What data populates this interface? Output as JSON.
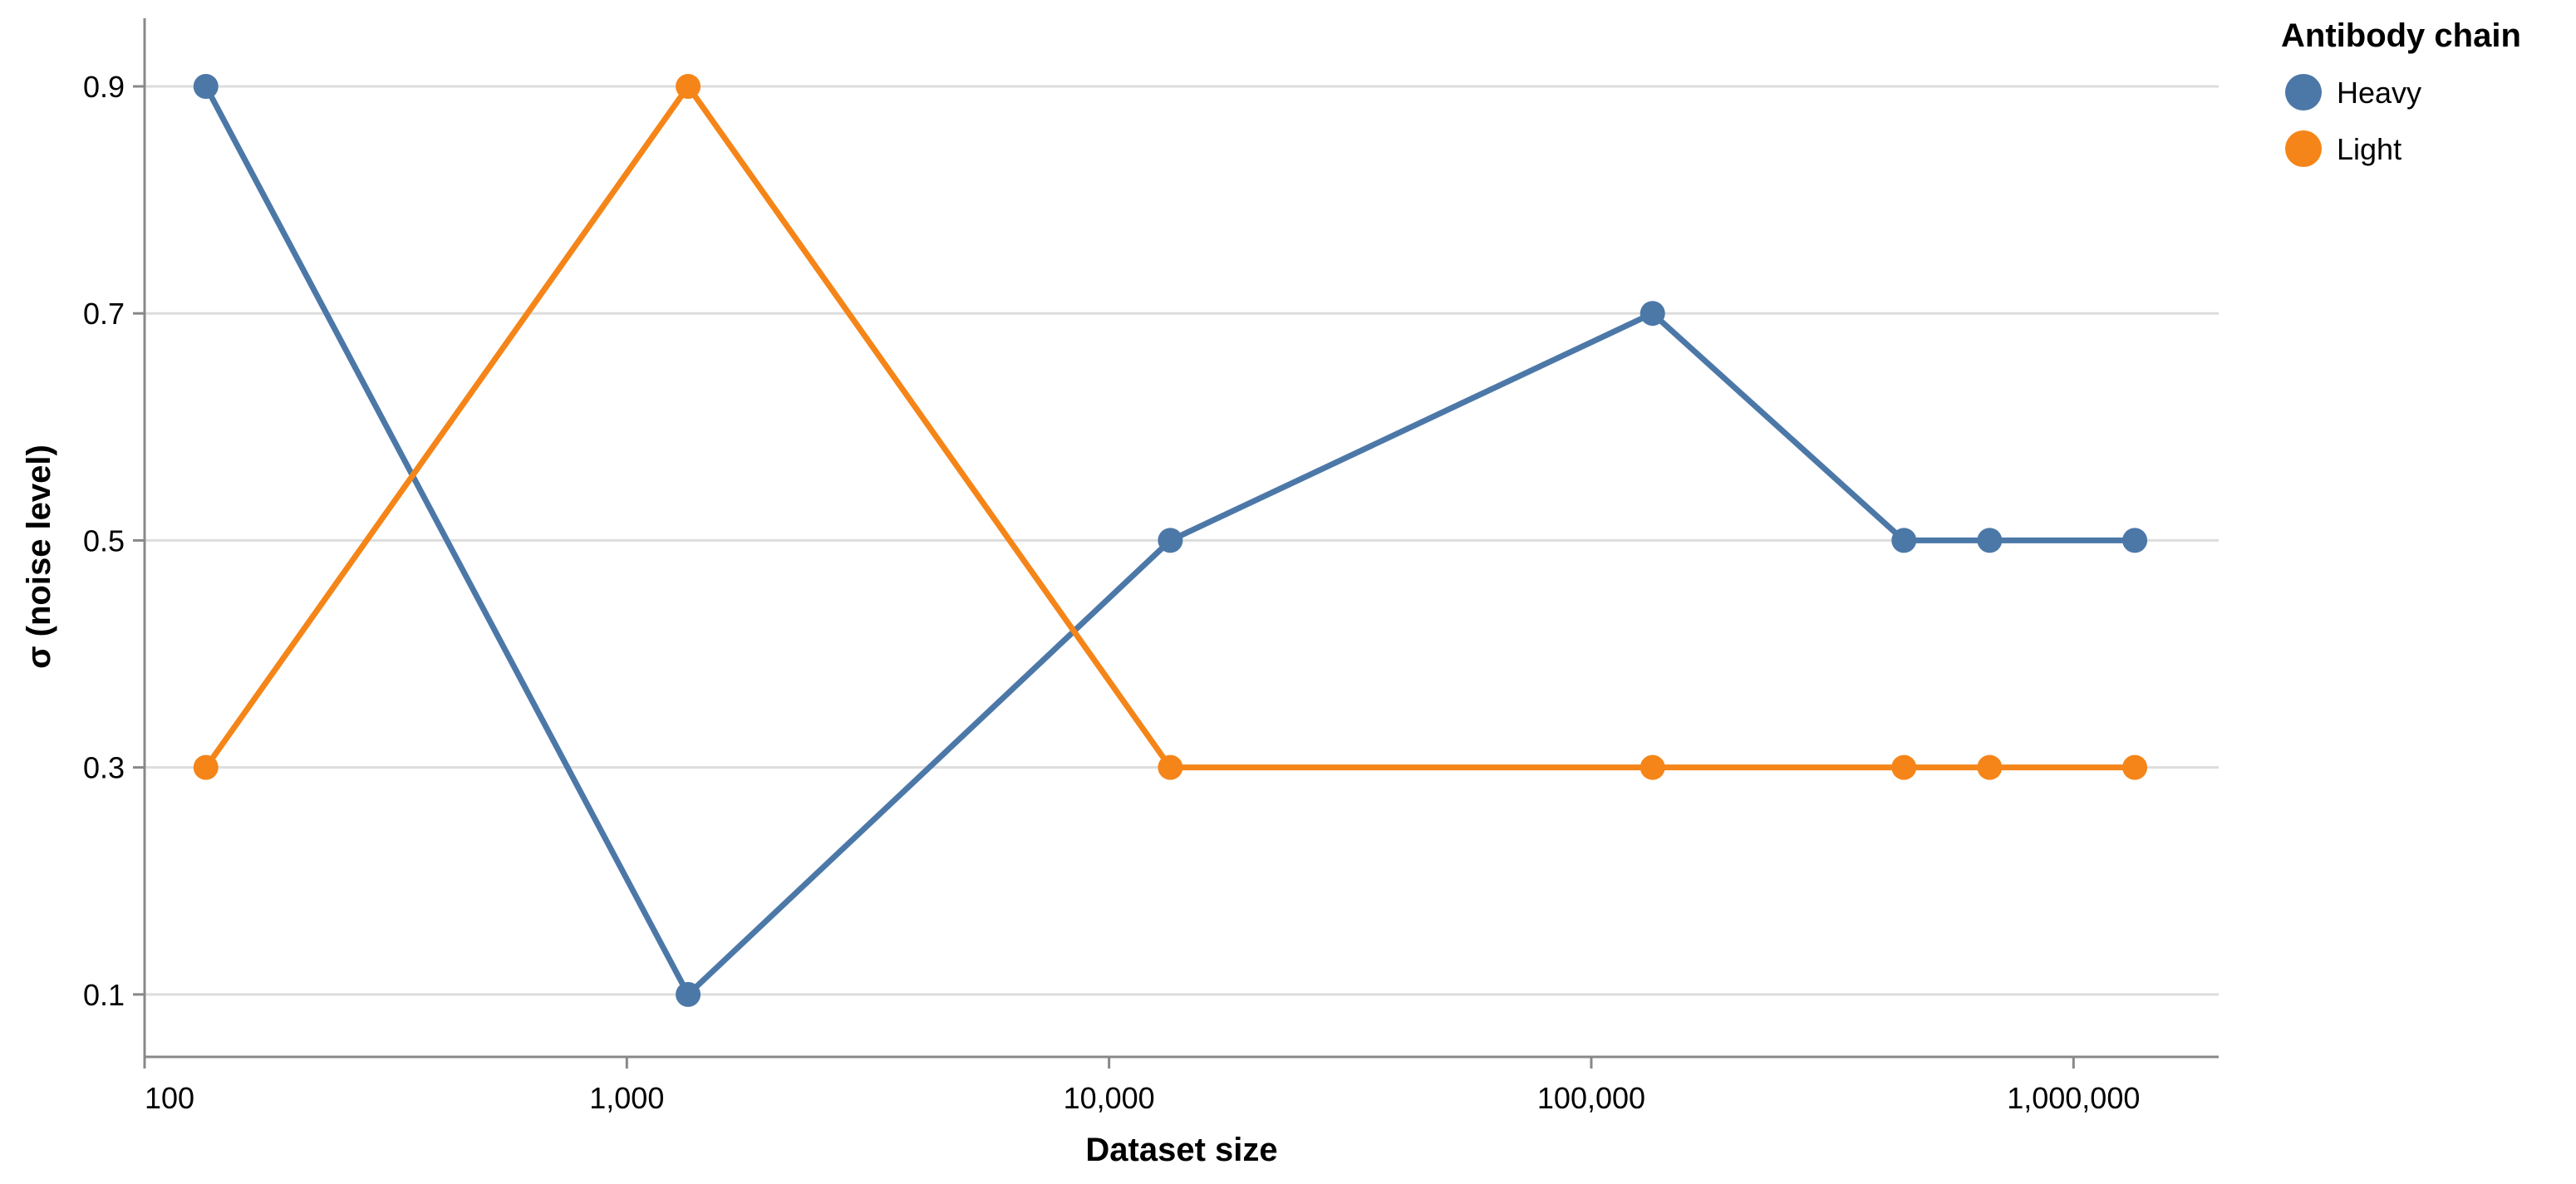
{
  "chart_data": {
    "type": "line",
    "title": "",
    "xlabel": "Dataset size",
    "ylabel": "σ (noise level)",
    "x_scale": "log",
    "xlim": [
      100,
      2000000
    ],
    "ylim": [
      0.045,
      0.96
    ],
    "x_ticks": [
      {
        "value": 100,
        "label": "100"
      },
      {
        "value": 1000,
        "label": "1,000"
      },
      {
        "value": 10000,
        "label": "10,000"
      },
      {
        "value": 100000,
        "label": "100,000"
      },
      {
        "value": 1000000,
        "label": "1,000,000"
      }
    ],
    "y_ticks": [
      {
        "value": 0.1,
        "label": "0.1"
      },
      {
        "value": 0.3,
        "label": "0.3"
      },
      {
        "value": 0.5,
        "label": "0.5"
      },
      {
        "value": 0.7,
        "label": "0.7"
      },
      {
        "value": 0.9,
        "label": "0.9"
      }
    ],
    "grid": "horizontal",
    "legend": {
      "title": "Antibody chain",
      "position": "top-right"
    },
    "series": [
      {
        "name": "Heavy",
        "color": "#4c78a8",
        "points": [
          {
            "x": 134,
            "y": 0.9
          },
          {
            "x": 1340,
            "y": 0.1
          },
          {
            "x": 13400,
            "y": 0.5
          },
          {
            "x": 134000,
            "y": 0.7
          },
          {
            "x": 445000,
            "y": 0.5
          },
          {
            "x": 670000,
            "y": 0.5
          },
          {
            "x": 1340000,
            "y": 0.5
          }
        ]
      },
      {
        "name": "Light",
        "color": "#f58518",
        "points": [
          {
            "x": 134,
            "y": 0.3
          },
          {
            "x": 1340,
            "y": 0.9
          },
          {
            "x": 13400,
            "y": 0.3
          },
          {
            "x": 134000,
            "y": 0.3
          },
          {
            "x": 445000,
            "y": 0.3
          },
          {
            "x": 670000,
            "y": 0.3
          },
          {
            "x": 1340000,
            "y": 0.3
          }
        ]
      }
    ]
  }
}
